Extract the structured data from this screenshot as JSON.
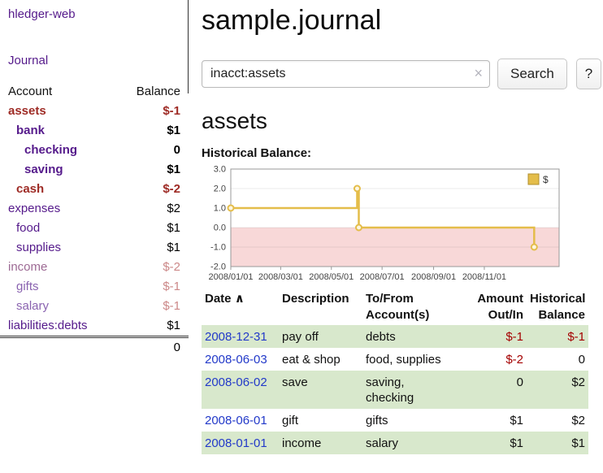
{
  "sidebar": {
    "brand": "hledger-web",
    "journal_link": "Journal",
    "accounts_header": {
      "account": "Account",
      "balance": "Balance"
    },
    "accounts": [
      {
        "name": "assets",
        "depth": 0,
        "balance": "$-1",
        "bold": true,
        "name_color": "#9e2b25",
        "balance_color": "#9e2b25"
      },
      {
        "name": "bank",
        "depth": 1,
        "balance": "$1",
        "bold": true,
        "name_color": "#551a8b",
        "balance_color": "#000000"
      },
      {
        "name": "checking",
        "depth": 2,
        "balance": "0",
        "bold": true,
        "name_color": "#551a8b",
        "balance_color": "#000000"
      },
      {
        "name": "saving",
        "depth": 2,
        "balance": "$1",
        "bold": true,
        "name_color": "#551a8b",
        "balance_color": "#000000"
      },
      {
        "name": "cash",
        "depth": 1,
        "balance": "$-2",
        "bold": true,
        "name_color": "#9e2b25",
        "balance_color": "#9e2b25"
      },
      {
        "name": "expenses",
        "depth": 0,
        "balance": "$2",
        "bold": false,
        "name_color": "#551a8b",
        "balance_color": "#000000"
      },
      {
        "name": "food",
        "depth": 1,
        "balance": "$1",
        "bold": false,
        "name_color": "#551a8b",
        "balance_color": "#000000"
      },
      {
        "name": "supplies",
        "depth": 1,
        "balance": "$1",
        "bold": false,
        "name_color": "#551a8b",
        "balance_color": "#000000"
      },
      {
        "name": "income",
        "depth": 0,
        "balance": "$-2",
        "bold": false,
        "name_color": "#9d6a94",
        "balance_color": "#cc8888"
      },
      {
        "name": "gifts",
        "depth": 1,
        "balance": "$-1",
        "bold": false,
        "name_color": "#8a63b0",
        "balance_color": "#cc8888"
      },
      {
        "name": "salary",
        "depth": 1,
        "balance": "$-1",
        "bold": false,
        "name_color": "#8a63b0",
        "balance_color": "#cc8888"
      },
      {
        "name": "liabilities:debts",
        "depth": 0,
        "balance": "$1",
        "bold": false,
        "name_color": "#551a8b",
        "balance_color": "#000000"
      }
    ],
    "total": "0"
  },
  "main": {
    "title": "sample.journal",
    "search": {
      "value": "inacct:assets",
      "clear_icon": "×",
      "button": "Search",
      "help_button": "?"
    },
    "account_heading": "assets",
    "chart_label": "Historical Balance:"
  },
  "chart_data": {
    "type": "line",
    "step": true,
    "title": "Historical Balance",
    "series": [
      {
        "name": "$",
        "points": [
          {
            "date": "2008-01-01",
            "x_day": 0,
            "y": 1
          },
          {
            "date": "2008-06-01",
            "x_day": 152,
            "y": 2
          },
          {
            "date": "2008-06-03",
            "x_day": 154,
            "y": 0
          },
          {
            "date": "2008-12-31",
            "x_day": 365,
            "y": -1
          }
        ]
      }
    ],
    "x_ticks": [
      {
        "day": 0,
        "label": "2008/01/01"
      },
      {
        "day": 60,
        "label": "2008/03/01"
      },
      {
        "day": 121,
        "label": "2008/05/01"
      },
      {
        "day": 182,
        "label": "2008/07/01"
      },
      {
        "day": 244,
        "label": "2008/09/01"
      },
      {
        "day": 305,
        "label": "2008/11/01"
      }
    ],
    "y_ticks": [
      3,
      2,
      1,
      0,
      -1,
      -2
    ],
    "x_domain": [
      0,
      395
    ],
    "y_domain": [
      -2,
      3
    ],
    "legend": {
      "label": "$",
      "position": "top-right",
      "color": "#e4bd4a"
    },
    "line_color": "#e4bd4a",
    "marker_fill": "#fdf6e0",
    "negative_region_color": "#f8d8d8",
    "grid": true
  },
  "table": {
    "headers": [
      "Date",
      "Description",
      "To/From Account(s)",
      "Amount Out/In",
      "Historical Balance"
    ],
    "sort_icon": "∧",
    "rows": [
      {
        "date": "2008-12-31",
        "description": "pay off",
        "accounts": "debts",
        "amount": "$-1",
        "amount_negative": true,
        "balance": "$-1",
        "balance_negative": true,
        "shaded": true
      },
      {
        "date": "2008-06-03",
        "description": "eat & shop",
        "accounts": "food, supplies",
        "amount": "$-2",
        "amount_negative": true,
        "balance": "0",
        "balance_negative": false,
        "shaded": false
      },
      {
        "date": "2008-06-02",
        "description": "save",
        "accounts": "saving,\nchecking",
        "amount": "0",
        "amount_negative": false,
        "balance": "$2",
        "balance_negative": false,
        "shaded": true
      },
      {
        "date": "2008-06-01",
        "description": "gift",
        "accounts": "gifts",
        "amount": "$1",
        "amount_negative": false,
        "balance": "$2",
        "balance_negative": false,
        "shaded": false
      },
      {
        "date": "2008-01-01",
        "description": "income",
        "accounts": "salary",
        "amount": "$1",
        "amount_negative": false,
        "balance": "$1",
        "balance_negative": false,
        "shaded": true
      }
    ]
  }
}
